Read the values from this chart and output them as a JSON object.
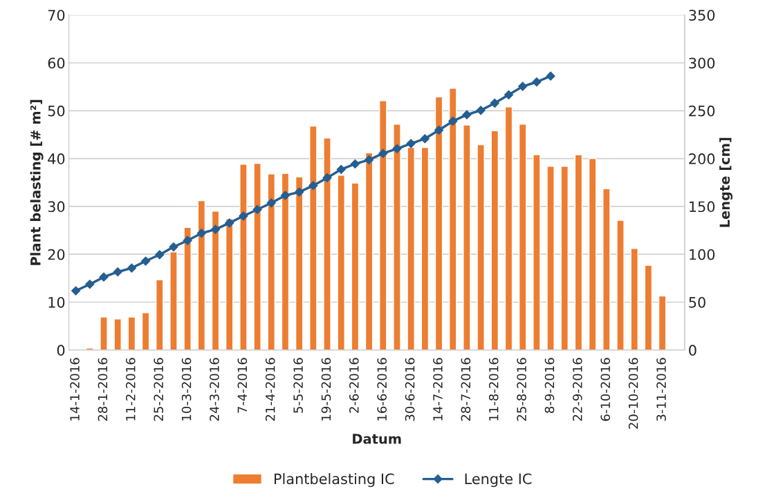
{
  "chart_data": {
    "type": "bar",
    "xlabel": "Datum",
    "ylabel": "Plant belasting [# m²]",
    "y2label": "Lengte [cm]",
    "categories": [
      "14-1-2016",
      null,
      "28-1-2016",
      null,
      "11-2-2016",
      null,
      "25-2-2016",
      null,
      "10-3-2016",
      null,
      "24-3-2016",
      null,
      "7-4-2016",
      null,
      "21-4-2016",
      null,
      "5-5-2016",
      null,
      "19-5-2016",
      null,
      "2-6-2016",
      null,
      "16-6-2016",
      null,
      "30-6-2016",
      null,
      "14-7-2016",
      null,
      "28-7-2016",
      null,
      "11-8-2016",
      null,
      "25-8-2016",
      null,
      "8-9-2016",
      null,
      "22-9-2016",
      null,
      "6-10-2016",
      null,
      "20-10-2016",
      null,
      "3-11-2016"
    ],
    "series": [
      {
        "name": "Plantbelasting IC",
        "color": "#ed7d31",
        "values": [
          null,
          0.4,
          6.9,
          6.5,
          6.9,
          7.8,
          14.7,
          20.5,
          25.6,
          31.2,
          29.0,
          27.4,
          38.8,
          39.0,
          36.8,
          36.9,
          36.2,
          46.8,
          44.3,
          36.5,
          34.9,
          41.2,
          52.1,
          47.2,
          42.3,
          42.3,
          52.9,
          54.7,
          47.0,
          42.9,
          45.8,
          50.8,
          47.2,
          40.8,
          38.4,
          38.4,
          40.8,
          40.0,
          33.7,
          27.1,
          21.2,
          17.7,
          11.3
        ]
      },
      {
        "name": "Lengte IC",
        "type": "line",
        "axis": "y2",
        "color": "#255e91",
        "marker": "diamond",
        "values": [
          61.9,
          68.7,
          76.2,
          81.6,
          85.6,
          92.9,
          99.6,
          107.7,
          114.4,
          122.0,
          126.0,
          132.7,
          140.0,
          146.7,
          153.7,
          161.5,
          165.0,
          171.8,
          179.9,
          188.7,
          194.4,
          198.7,
          205.4,
          210.3,
          215.7,
          220.8,
          229.7,
          239.1,
          245.8,
          250.4,
          257.9,
          266.6,
          275.4,
          280.0,
          286.2,
          null,
          null,
          null,
          null,
          null,
          null,
          null,
          null
        ]
      }
    ],
    "ylim": [
      0,
      70
    ],
    "yticks": [
      0,
      10,
      20,
      30,
      40,
      50,
      60,
      70
    ],
    "y2lim": [
      0,
      350
    ],
    "y2ticks": [
      0,
      50,
      100,
      150,
      200,
      250,
      300,
      350
    ],
    "grid": "y",
    "legend": "bottom"
  }
}
